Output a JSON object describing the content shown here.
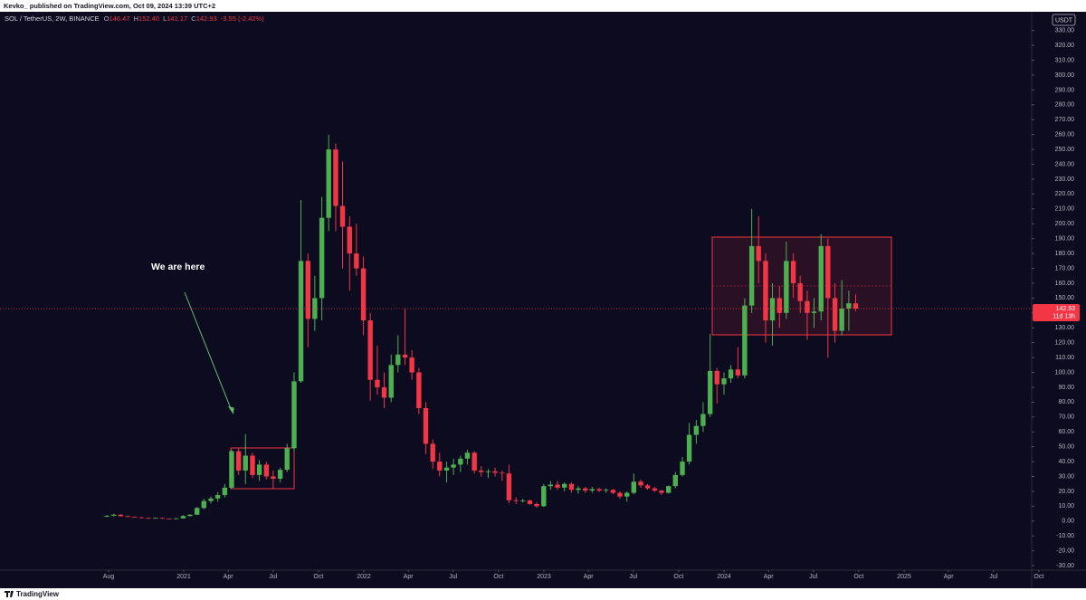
{
  "header": {
    "publisher": "Kevko_ published on TradingView.com, Oct 09, 2024 13:39 UTC+2"
  },
  "footer": {
    "brand": "TradingView"
  },
  "chart_data": {
    "type": "candlestick",
    "title": "SOL / TetherUS, 2W, BINANCE",
    "legend": [
      {
        "label": "O",
        "value": "146.47"
      },
      {
        "label": "H",
        "value": "152.40"
      },
      {
        "label": "L",
        "value": "141.17"
      },
      {
        "label": "C",
        "value": "142.93"
      }
    ],
    "change": "-3.55 (-2.42%)",
    "currency": "USDT",
    "countdown": "11d 13h",
    "annotation": "We are here",
    "up_color": "#4caf50",
    "down_color": "#f23645",
    "grid": false,
    "xlim": [
      2019.98,
      2026.01
    ],
    "xticks": [
      {
        "value": 2020.583,
        "label": "Aug"
      },
      2021,
      {
        "value": 2021.247,
        "label": "Apr"
      },
      {
        "value": 2021.496,
        "label": "Jul"
      },
      {
        "value": 2021.748,
        "label": "Oct"
      },
      2022,
      {
        "value": 2022.247,
        "label": "Apr"
      },
      {
        "value": 2022.496,
        "label": "Jul"
      },
      {
        "value": 2022.748,
        "label": "Oct"
      },
      2023,
      {
        "value": 2023.247,
        "label": "Apr"
      },
      {
        "value": 2023.496,
        "label": "Jul"
      },
      {
        "value": 2023.748,
        "label": "Oct"
      },
      2024,
      {
        "value": 2024.247,
        "label": "Apr"
      },
      {
        "value": 2024.496,
        "label": "Jul"
      },
      {
        "value": 2024.748,
        "label": "Oct"
      },
      2025,
      {
        "value": 2025.247,
        "label": "Apr"
      },
      {
        "value": 2025.496,
        "label": "Jul"
      },
      {
        "value": 2025.748,
        "label": "Oct"
      }
    ],
    "ylim": [
      -33,
      342
    ],
    "yticks": [
      {
        "value": -30,
        "label": "-30.00"
      },
      {
        "value": -20,
        "label": "-20.00"
      },
      {
        "value": -10,
        "label": "-10.00"
      },
      {
        "value": 0,
        "label": "0.00"
      },
      {
        "value": 10,
        "label": "10.00"
      },
      {
        "value": 20,
        "label": "20.00"
      },
      {
        "value": 30,
        "label": "30.00"
      },
      {
        "value": 40,
        "label": "40.00"
      },
      {
        "value": 50,
        "label": "50.00"
      },
      {
        "value": 60,
        "label": "60.00"
      },
      {
        "value": 70,
        "label": "70.00"
      },
      {
        "value": 80,
        "label": "80.00"
      },
      {
        "value": 90,
        "label": "90.00"
      },
      {
        "value": 100,
        "label": "100.00"
      },
      {
        "value": 110,
        "label": "110.00"
      },
      {
        "value": 120,
        "label": "120.00"
      },
      {
        "value": 130,
        "label": "130.00"
      },
      {
        "value": 140,
        "label": "140.00"
      },
      {
        "value": 150,
        "label": "150.00"
      },
      {
        "value": 160,
        "label": "160.00"
      },
      {
        "value": 170,
        "label": "170.00"
      },
      {
        "value": 180,
        "label": "180.00"
      },
      {
        "value": 190,
        "label": "190.00"
      },
      {
        "value": 200,
        "label": "200.00"
      },
      {
        "value": 210,
        "label": "210.00"
      },
      {
        "value": 220,
        "label": "220.00"
      },
      {
        "value": 230,
        "label": "230.00"
      },
      {
        "value": 240,
        "label": "240.00"
      },
      {
        "value": 250,
        "label": "250.00"
      },
      {
        "value": 260,
        "label": "260.00"
      },
      {
        "value": 270,
        "label": "270.00"
      },
      {
        "value": 280,
        "label": "280.00"
      },
      {
        "value": 290,
        "label": "290.00"
      },
      {
        "value": 300,
        "label": "300.00"
      },
      {
        "value": 310,
        "label": "310.00"
      },
      {
        "value": 320,
        "label": "320.00"
      },
      {
        "value": 330,
        "label": "330.00"
      }
    ],
    "x": [
      2020.573,
      2020.612,
      2020.65,
      2020.689,
      2020.727,
      2020.766,
      2020.804,
      2020.843,
      2020.881,
      2020.92,
      2020.958,
      2020.997,
      2021.035,
      2021.074,
      2021.112,
      2021.151,
      2021.189,
      2021.228,
      2021.266,
      2021.305,
      2021.343,
      2021.382,
      2021.42,
      2021.459,
      2021.497,
      2021.536,
      2021.574,
      2021.613,
      2021.651,
      2021.69,
      2021.728,
      2021.767,
      2021.805,
      2021.844,
      2021.882,
      2021.921,
      2021.959,
      2021.998,
      2022.036,
      2022.075,
      2022.113,
      2022.152,
      2022.19,
      2022.229,
      2022.267,
      2022.306,
      2022.344,
      2022.383,
      2022.421,
      2022.46,
      2022.498,
      2022.537,
      2022.575,
      2022.614,
      2022.652,
      2022.691,
      2022.729,
      2022.768,
      2022.806,
      2022.845,
      2022.883,
      2022.922,
      2022.96,
      2022.999,
      2023.037,
      2023.076,
      2023.114,
      2023.153,
      2023.191,
      2023.23,
      2023.268,
      2023.307,
      2023.345,
      2023.384,
      2023.422,
      2023.461,
      2023.499,
      2023.538,
      2023.576,
      2023.615,
      2023.653,
      2023.692,
      2023.73,
      2023.769,
      2023.807,
      2023.846,
      2023.884,
      2023.923,
      2023.961,
      2024.0,
      2024.038,
      2024.077,
      2024.115,
      2024.154,
      2024.192,
      2024.231,
      2024.269,
      2024.308,
      2024.346,
      2024.385,
      2024.423,
      2024.462,
      2024.5,
      2024.539,
      2024.577,
      2024.616,
      2024.654,
      2024.693,
      2024.731
    ],
    "open": [
      3,
      3.6,
      4.3,
      3.3,
      2.9,
      2.5,
      2.1,
      1.8,
      2.1,
      1.7,
      1.6,
      1.8,
      3.4,
      4.3,
      8.8,
      13.5,
      15.2,
      17.5,
      22.5,
      47,
      34,
      44,
      31,
      38,
      30,
      28.5,
      34.5,
      49,
      94,
      175,
      136,
      150,
      204,
      250,
      212,
      198,
      180,
      170,
      135,
      95,
      90,
      83,
      105,
      112,
      110,
      100,
      76,
      52,
      40,
      34,
      36,
      38,
      42,
      46,
      34,
      33,
      33.5,
      32.5,
      32,
      14,
      13.5,
      13.8,
      11.5,
      10,
      23.5,
      24.5,
      22.5,
      25,
      21,
      22,
      20.5,
      21.5,
      20.5,
      21,
      19,
      16.5,
      19,
      26.5,
      24,
      22,
      20.5,
      19,
      23.5,
      31,
      40,
      58,
      64,
      72,
      101,
      92,
      96,
      102,
      98,
      145,
      185,
      175,
      135,
      150,
      140,
      175,
      160,
      148,
      140,
      141,
      185,
      150,
      128,
      143,
      146.47
    ],
    "high": [
      4,
      4.9,
      4.6,
      3.6,
      3.1,
      2.8,
      2.3,
      2.4,
      2.3,
      1.8,
      2.2,
      4,
      4.6,
      9.5,
      15,
      16.5,
      19.5,
      25,
      48,
      49.5,
      58.5,
      46,
      41,
      40,
      34,
      36,
      52,
      100,
      216,
      180,
      165,
      218,
      260,
      254,
      242,
      205,
      200,
      178,
      140,
      118,
      100,
      112,
      125,
      143,
      115,
      103,
      80,
      55,
      46,
      40,
      42,
      44,
      48,
      47,
      37,
      35,
      36,
      34,
      38,
      16,
      15,
      14.5,
      12.5,
      25,
      27,
      27,
      26,
      26,
      23.5,
      23,
      23,
      22.5,
      22,
      21.5,
      20,
      20,
      32,
      28,
      25,
      23,
      21,
      24,
      33,
      43,
      66,
      68,
      80,
      126,
      103,
      100,
      105,
      117,
      150,
      210,
      205,
      180,
      160,
      158,
      188,
      180,
      165,
      155,
      150,
      193,
      190,
      160,
      162,
      155,
      152.4
    ],
    "low": [
      2.6,
      3.2,
      2.9,
      2.6,
      2.3,
      1.9,
      1.6,
      1.7,
      1.5,
      1.4,
      1.4,
      1.7,
      3,
      4,
      8,
      11.8,
      13,
      16,
      21.5,
      31,
      25,
      29,
      27,
      28,
      22,
      26,
      33,
      47,
      93,
      117,
      128,
      135,
      195,
      195,
      170,
      155,
      165,
      125,
      81,
      85,
      76,
      80,
      100,
      105,
      95,
      72,
      45,
      35,
      30,
      26,
      31,
      33,
      38,
      32,
      30,
      29,
      30,
      27,
      12,
      11.5,
      12.5,
      11,
      9,
      9.5,
      21,
      21,
      20,
      19,
      18.5,
      19,
      19,
      19.5,
      19,
      18,
      15,
      13,
      18,
      22.5,
      21,
      19.5,
      17.5,
      18.5,
      22,
      30,
      38,
      52,
      60,
      70,
      79,
      85,
      93,
      96,
      96,
      140,
      160,
      120,
      118,
      130,
      136,
      150,
      140,
      122,
      130,
      135,
      110,
      120,
      125,
      128,
      141.17
    ],
    "close": [
      3.6,
      4.3,
      3.3,
      2.9,
      2.5,
      2.1,
      1.8,
      2.1,
      1.7,
      1.6,
      1.8,
      3.4,
      4.3,
      8.8,
      13.5,
      15.2,
      17.5,
      22.5,
      47,
      34,
      44,
      31,
      38,
      30,
      28.5,
      34.5,
      49,
      94,
      175,
      136,
      150,
      204,
      250,
      212,
      198,
      180,
      170,
      135,
      95,
      90,
      83,
      105,
      112,
      110,
      100,
      76,
      52,
      40,
      34,
      36,
      38,
      42,
      46,
      34,
      33,
      33.5,
      32.5,
      32,
      14,
      13.5,
      13.8,
      11.5,
      10,
      23.5,
      24.5,
      22.5,
      25,
      21,
      22,
      20.5,
      21.5,
      20.5,
      21,
      19,
      16.5,
      19,
      26.5,
      24,
      22,
      20.5,
      19,
      23.5,
      31,
      40,
      58,
      64,
      72,
      101,
      92,
      96,
      102,
      98,
      145,
      185,
      175,
      135,
      150,
      140,
      175,
      160,
      148,
      140,
      141,
      185,
      150,
      128,
      143,
      146.47,
      142.93
    ]
  }
}
